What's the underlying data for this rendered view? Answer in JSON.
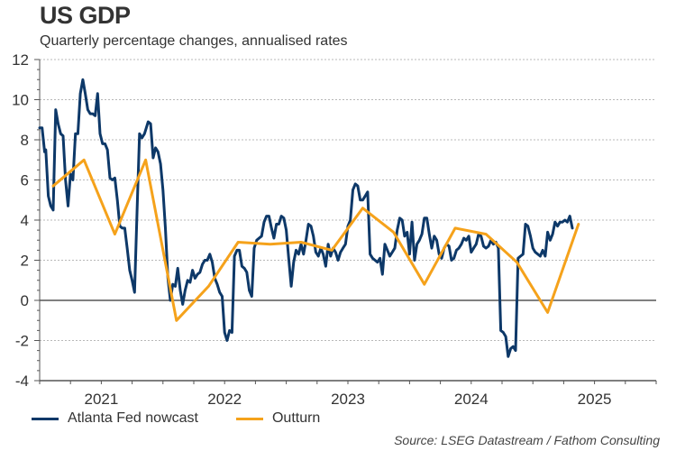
{
  "chart_data": {
    "type": "line",
    "title": "US GDP",
    "subtitle": "Quarterly percentage changes, annualised rates",
    "xlabel": "",
    "ylabel": "",
    "ylim": [
      -4,
      12
    ],
    "xlim": [
      2021.0,
      2026.0
    ],
    "yticks": [
      -4,
      -2,
      0,
      2,
      4,
      6,
      8,
      10,
      12
    ],
    "xtick_labels": [
      "2021",
      "2022",
      "2023",
      "2024",
      "2025"
    ],
    "grid": true,
    "legend_position": "bottom-left",
    "series": [
      {
        "name": "Atlanta Fed nowcast",
        "color": "#0d3868",
        "points": [
          [
            2021.0,
            8.6
          ],
          [
            2021.02,
            8.6
          ],
          [
            2021.04,
            7.4
          ],
          [
            2021.05,
            7.5
          ],
          [
            2021.07,
            5.2
          ],
          [
            2021.09,
            4.7
          ],
          [
            2021.11,
            4.5
          ],
          [
            2021.13,
            9.5
          ],
          [
            2021.15,
            8.8
          ],
          [
            2021.17,
            8.3
          ],
          [
            2021.19,
            8.2
          ],
          [
            2021.21,
            6.0
          ],
          [
            2021.23,
            4.7
          ],
          [
            2021.25,
            6.3
          ],
          [
            2021.27,
            6.0
          ],
          [
            2021.29,
            8.3
          ],
          [
            2021.31,
            8.3
          ],
          [
            2021.33,
            10.3
          ],
          [
            2021.35,
            11.0
          ],
          [
            2021.37,
            10.3
          ],
          [
            2021.39,
            9.5
          ],
          [
            2021.41,
            9.3
          ],
          [
            2021.43,
            9.3
          ],
          [
            2021.45,
            9.2
          ],
          [
            2021.47,
            10.3
          ],
          [
            2021.49,
            8.3
          ],
          [
            2021.51,
            7.8
          ],
          [
            2021.53,
            7.8
          ],
          [
            2021.55,
            7.5
          ],
          [
            2021.57,
            6.1
          ],
          [
            2021.59,
            6.0
          ],
          [
            2021.61,
            6.1
          ],
          [
            2021.63,
            5.0
          ],
          [
            2021.65,
            3.7
          ],
          [
            2021.67,
            3.6
          ],
          [
            2021.69,
            3.6
          ],
          [
            2021.71,
            2.6
          ],
          [
            2021.73,
            1.5
          ],
          [
            2021.75,
            1.0
          ],
          [
            2021.77,
            0.4
          ],
          [
            2021.79,
            4.5
          ],
          [
            2021.81,
            8.3
          ],
          [
            2021.83,
            8.1
          ],
          [
            2021.85,
            8.3
          ],
          [
            2021.88,
            8.9
          ],
          [
            2021.9,
            8.8
          ],
          [
            2021.92,
            7.1
          ],
          [
            2021.94,
            7.6
          ],
          [
            2021.96,
            7.4
          ],
          [
            2021.98,
            6.8
          ],
          [
            2022.0,
            5.5
          ],
          [
            2022.02,
            3.6
          ],
          [
            2022.04,
            1.1
          ],
          [
            2022.06,
            0.0
          ],
          [
            2022.08,
            0.8
          ],
          [
            2022.1,
            0.7
          ],
          [
            2022.12,
            1.6
          ],
          [
            2022.14,
            0.5
          ],
          [
            2022.16,
            -0.2
          ],
          [
            2022.18,
            0.5
          ],
          [
            2022.2,
            1.0
          ],
          [
            2022.22,
            0.9
          ],
          [
            2022.24,
            1.5
          ],
          [
            2022.26,
            1.1
          ],
          [
            2022.28,
            1.3
          ],
          [
            2022.3,
            1.4
          ],
          [
            2022.32,
            1.8
          ],
          [
            2022.34,
            2.0
          ],
          [
            2022.36,
            2.0
          ],
          [
            2022.38,
            2.3
          ],
          [
            2022.4,
            1.9
          ],
          [
            2022.42,
            1.1
          ],
          [
            2022.44,
            0.8
          ],
          [
            2022.46,
            0.4
          ],
          [
            2022.48,
            0.2
          ],
          [
            2022.5,
            -1.6
          ],
          [
            2022.52,
            -2.0
          ],
          [
            2022.54,
            -1.5
          ],
          [
            2022.56,
            -1.6
          ],
          [
            2022.58,
            2.2
          ],
          [
            2022.6,
            2.5
          ],
          [
            2022.62,
            2.5
          ],
          [
            2022.64,
            1.7
          ],
          [
            2022.66,
            1.6
          ],
          [
            2022.68,
            1.4
          ],
          [
            2022.7,
            0.5
          ],
          [
            2022.72,
            0.2
          ],
          [
            2022.74,
            2.6
          ],
          [
            2022.76,
            3.0
          ],
          [
            2022.78,
            3.1
          ],
          [
            2022.8,
            3.2
          ],
          [
            2022.82,
            3.9
          ],
          [
            2022.84,
            4.2
          ],
          [
            2022.86,
            4.2
          ],
          [
            2022.88,
            3.6
          ],
          [
            2022.9,
            3.1
          ],
          [
            2022.92,
            3.8
          ],
          [
            2022.94,
            3.8
          ],
          [
            2022.96,
            4.2
          ],
          [
            2022.98,
            4.1
          ],
          [
            2023.0,
            3.5
          ],
          [
            2023.02,
            2.1
          ],
          [
            2023.04,
            0.7
          ],
          [
            2023.06,
            1.9
          ],
          [
            2023.08,
            2.5
          ],
          [
            2023.1,
            2.3
          ],
          [
            2023.12,
            2.8
          ],
          [
            2023.14,
            2.3
          ],
          [
            2023.16,
            3.0
          ],
          [
            2023.18,
            3.8
          ],
          [
            2023.2,
            3.7
          ],
          [
            2023.22,
            3.2
          ],
          [
            2023.24,
            2.4
          ],
          [
            2023.26,
            2.2
          ],
          [
            2023.28,
            2.6
          ],
          [
            2023.3,
            2.3
          ],
          [
            2023.32,
            1.7
          ],
          [
            2023.34,
            2.8
          ],
          [
            2023.36,
            2.2
          ],
          [
            2023.38,
            2.6
          ],
          [
            2023.4,
            2.4
          ],
          [
            2023.42,
            2.0
          ],
          [
            2023.44,
            2.4
          ],
          [
            2023.46,
            2.6
          ],
          [
            2023.48,
            2.8
          ],
          [
            2023.5,
            3.7
          ],
          [
            2023.52,
            4.0
          ],
          [
            2023.54,
            5.5
          ],
          [
            2023.56,
            5.8
          ],
          [
            2023.58,
            5.7
          ],
          [
            2023.6,
            5.0
          ],
          [
            2023.62,
            5.0
          ],
          [
            2023.64,
            5.2
          ],
          [
            2023.66,
            5.4
          ],
          [
            2023.68,
            2.3
          ],
          [
            2023.7,
            2.1
          ],
          [
            2023.72,
            2.0
          ],
          [
            2023.74,
            1.9
          ],
          [
            2023.76,
            2.1
          ],
          [
            2023.78,
            1.3
          ],
          [
            2023.8,
            2.8
          ],
          [
            2023.82,
            2.5
          ],
          [
            2023.84,
            2.2
          ],
          [
            2023.86,
            2.4
          ],
          [
            2023.88,
            2.6
          ],
          [
            2023.9,
            3.5
          ],
          [
            2023.92,
            4.1
          ],
          [
            2023.94,
            4.0
          ],
          [
            2023.96,
            3.2
          ],
          [
            2023.98,
            3.4
          ],
          [
            2024.0,
            2.3
          ],
          [
            2024.02,
            3.9
          ],
          [
            2024.04,
            2.0
          ],
          [
            2024.06,
            2.8
          ],
          [
            2024.08,
            3.0
          ],
          [
            2024.1,
            3.3
          ],
          [
            2024.12,
            4.1
          ],
          [
            2024.14,
            4.1
          ],
          [
            2024.16,
            3.3
          ],
          [
            2024.18,
            2.6
          ],
          [
            2024.2,
            3.2
          ],
          [
            2024.22,
            3.0
          ],
          [
            2024.24,
            2.3
          ],
          [
            2024.26,
            2.1
          ],
          [
            2024.28,
            2.6
          ],
          [
            2024.3,
            2.8
          ],
          [
            2024.32,
            2.7
          ],
          [
            2024.34,
            2.0
          ],
          [
            2024.36,
            2.1
          ],
          [
            2024.38,
            2.5
          ],
          [
            2024.4,
            2.6
          ],
          [
            2024.42,
            2.8
          ],
          [
            2024.44,
            3.1
          ],
          [
            2024.46,
            3.0
          ],
          [
            2024.48,
            3.2
          ],
          [
            2024.5,
            2.4
          ],
          [
            2024.52,
            2.6
          ],
          [
            2024.54,
            2.8
          ],
          [
            2024.56,
            3.3
          ],
          [
            2024.58,
            3.2
          ],
          [
            2024.6,
            2.7
          ],
          [
            2024.62,
            2.6
          ],
          [
            2024.64,
            2.7
          ],
          [
            2024.66,
            3.0
          ],
          [
            2024.68,
            2.8
          ],
          [
            2024.7,
            2.9
          ],
          [
            2024.72,
            2.6
          ],
          [
            2024.74,
            -1.5
          ],
          [
            2024.76,
            -1.6
          ],
          [
            2024.78,
            -1.8
          ],
          [
            2024.8,
            -2.8
          ],
          [
            2024.82,
            -2.4
          ],
          [
            2024.84,
            -2.3
          ],
          [
            2024.86,
            -2.5
          ],
          [
            2024.88,
            2.1
          ],
          [
            2024.9,
            2.2
          ],
          [
            2024.92,
            2.3
          ],
          [
            2024.94,
            3.8
          ],
          [
            2024.96,
            3.7
          ],
          [
            2024.98,
            3.2
          ],
          [
            2025.0,
            2.6
          ],
          [
            2025.02,
            2.4
          ],
          [
            2025.04,
            2.3
          ],
          [
            2025.06,
            2.2
          ],
          [
            2025.08,
            2.5
          ],
          [
            2025.1,
            2.2
          ],
          [
            2025.12,
            3.4
          ],
          [
            2025.14,
            3.0
          ],
          [
            2025.16,
            3.3
          ],
          [
            2025.18,
            3.9
          ],
          [
            2025.2,
            3.7
          ],
          [
            2025.22,
            3.9
          ],
          [
            2025.24,
            3.9
          ],
          [
            2025.26,
            4.0
          ],
          [
            2025.28,
            3.9
          ],
          [
            2025.3,
            4.2
          ],
          [
            2025.32,
            3.6
          ]
        ]
      },
      {
        "name": "Outturn",
        "color": "#f5a21b",
        "points": [
          [
            2021.11,
            5.7
          ],
          [
            2021.36,
            7.0
          ],
          [
            2021.61,
            3.3
          ],
          [
            2021.86,
            7.0
          ],
          [
            2022.11,
            -1.0
          ],
          [
            2022.37,
            0.7
          ],
          [
            2022.61,
            2.9
          ],
          [
            2022.87,
            2.8
          ],
          [
            2023.12,
            2.9
          ],
          [
            2023.37,
            2.5
          ],
          [
            2023.62,
            4.6
          ],
          [
            2023.87,
            3.4
          ],
          [
            2024.12,
            0.8
          ],
          [
            2024.37,
            3.6
          ],
          [
            2024.62,
            3.3
          ],
          [
            2024.87,
            1.9
          ],
          [
            2025.12,
            -0.6
          ],
          [
            2025.37,
            3.8
          ]
        ]
      }
    ]
  },
  "legend": {
    "items": [
      {
        "label": "Atlanta Fed nowcast",
        "color": "#0d3868"
      },
      {
        "label": "Outturn",
        "color": "#f5a21b"
      }
    ]
  },
  "source": "Source: LSEG Datastream / Fathom Consulting"
}
